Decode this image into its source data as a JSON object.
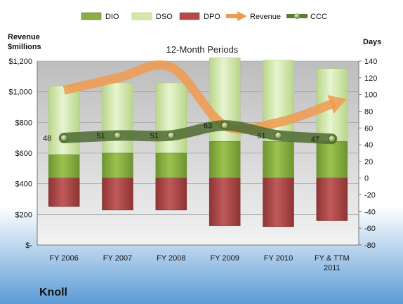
{
  "company": "Knoll",
  "chart_data": {
    "type": "bar",
    "title": "12-Month Periods",
    "left_axis_label": [
      "Revenue",
      "$millions"
    ],
    "right_axis_label": "Days",
    "categories": [
      "FY 2006",
      "FY 2007",
      "FY 2008",
      "FY 2009",
      "FY 2010",
      "FY & TTM 2011"
    ],
    "left_ticks": [
      "$-",
      "$200",
      "$400",
      "$600",
      "$800",
      "$1,000",
      "$1,200"
    ],
    "right_ticks": [
      "-80",
      "-60",
      "-40",
      "-20",
      "0",
      "20",
      "40",
      "60",
      "80",
      "100",
      "120",
      "140"
    ],
    "ylim_left": [
      0,
      1200
    ],
    "ylim_right": [
      -80,
      140
    ],
    "legend": [
      "DIO",
      "DSO",
      "DPO",
      "Revenue",
      "CCC"
    ],
    "legend_position": "top",
    "series": [
      {
        "name": "DIO",
        "type": "stacked-bar",
        "axis": "right",
        "values": [
          28,
          30,
          30,
          44,
          44,
          44
        ]
      },
      {
        "name": "DSO",
        "type": "stacked-bar",
        "axis": "right",
        "values": [
          82,
          84,
          84,
          100,
          97,
          87
        ]
      },
      {
        "name": "DPO",
        "type": "negative-bar",
        "axis": "right",
        "values": [
          -34,
          -38,
          -38,
          -57,
          -58,
          -51
        ]
      },
      {
        "name": "Revenue",
        "type": "arrow-line",
        "axis": "left",
        "values": [
          1010,
          1090,
          1160,
          780,
          800,
          920
        ]
      },
      {
        "name": "CCC",
        "type": "line",
        "axis": "right",
        "values": [
          48,
          51,
          51,
          63,
          51,
          47
        ],
        "labels": [
          "48",
          "51",
          "51",
          "63",
          "51",
          "47"
        ]
      }
    ],
    "colors": {
      "DIO": "#8CB040",
      "DSO": "#D4E8A8",
      "DPO": "#B84848",
      "Revenue": "#F09A50",
      "CCC": "#5A7A3A",
      "background_top": "#FFFFFF",
      "background_bottom": "#5B9BD5"
    }
  }
}
